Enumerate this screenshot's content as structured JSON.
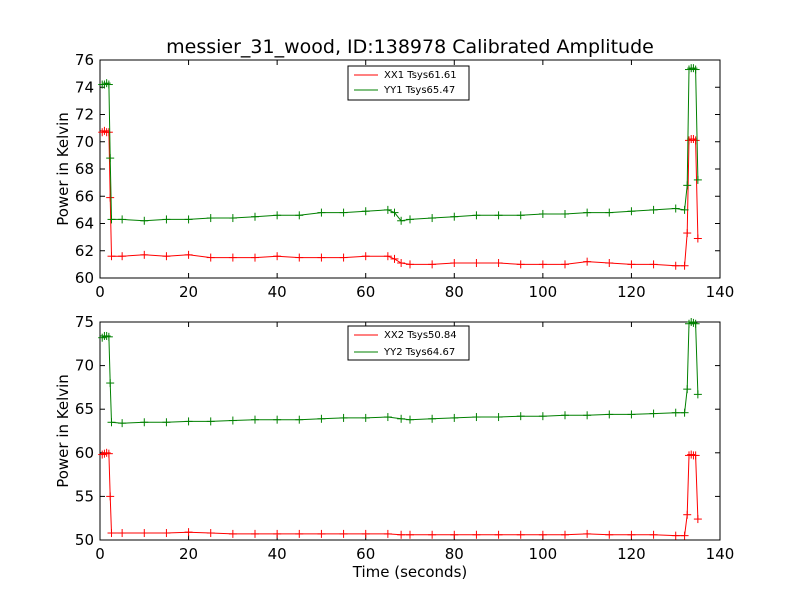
{
  "title": "messier_31_wood, ID:138978 Calibrated Amplitude",
  "colors": {
    "red": "#ff0000",
    "green": "#008000",
    "axes": "#000000",
    "background": "#ffffff"
  },
  "chart_data": [
    {
      "type": "line",
      "title": "messier_31_wood, ID:138978 Calibrated Amplitude",
      "ylabel": "Power in Kelvin",
      "xlabel": "",
      "xlim": [
        0,
        140
      ],
      "ylim": [
        60,
        76
      ],
      "xticks": [
        "0",
        "20",
        "40",
        "60",
        "80",
        "100",
        "120",
        "140"
      ],
      "yticks": [
        "60",
        "62",
        "64",
        "66",
        "68",
        "70",
        "72",
        "74",
        "76"
      ],
      "grid": false,
      "legend_position": "top-center",
      "series": [
        {
          "name": "XX1 Tsys61.61",
          "color": "#ff0000",
          "marker": "+",
          "x": [
            0.5,
            1.0,
            1.5,
            2.0,
            2.3,
            2.6,
            5,
            10,
            15,
            20,
            25,
            30,
            35,
            40,
            45,
            50,
            55,
            60,
            65,
            66.5,
            68,
            70,
            75,
            80,
            85,
            90,
            95,
            100,
            105,
            110,
            115,
            120,
            125,
            130,
            132,
            132.6,
            133,
            133.5,
            134,
            134.5,
            135
          ],
          "y": [
            70.7,
            70.8,
            70.7,
            70.7,
            65.9,
            61.6,
            61.6,
            61.7,
            61.6,
            61.7,
            61.5,
            61.5,
            61.5,
            61.6,
            61.5,
            61.5,
            61.5,
            61.6,
            61.6,
            61.4,
            61.1,
            61.0,
            61.0,
            61.1,
            61.1,
            61.1,
            61.0,
            61.0,
            61.0,
            61.2,
            61.1,
            61.0,
            61.0,
            60.9,
            60.9,
            63.3,
            70.1,
            70.2,
            70.2,
            70.1,
            62.9
          ]
        },
        {
          "name": "YY1 Tsys65.47",
          "color": "#008000",
          "marker": "+",
          "x": [
            0.5,
            1.0,
            1.5,
            2.0,
            2.3,
            2.6,
            5,
            10,
            15,
            20,
            25,
            30,
            35,
            40,
            45,
            50,
            55,
            60,
            65,
            66.5,
            68,
            70,
            75,
            80,
            85,
            90,
            95,
            100,
            105,
            110,
            115,
            120,
            125,
            130,
            132,
            132.6,
            133,
            133.5,
            134,
            134.5,
            135
          ],
          "y": [
            74.2,
            74.2,
            74.3,
            74.2,
            68.8,
            64.3,
            64.3,
            64.2,
            64.3,
            64.3,
            64.4,
            64.4,
            64.5,
            64.6,
            64.6,
            64.8,
            64.8,
            64.9,
            65.0,
            64.8,
            64.2,
            64.3,
            64.4,
            64.5,
            64.6,
            64.6,
            64.6,
            64.7,
            64.7,
            64.8,
            64.8,
            64.9,
            65.0,
            65.1,
            65.0,
            66.8,
            75.3,
            75.4,
            75.4,
            75.3,
            67.2
          ]
        }
      ]
    },
    {
      "type": "line",
      "title": "",
      "ylabel": "Power in Kelvin",
      "xlabel": "Time (seconds)",
      "xlim": [
        0,
        140
      ],
      "ylim": [
        50,
        75
      ],
      "xticks": [
        "0",
        "20",
        "40",
        "60",
        "80",
        "100",
        "120",
        "140"
      ],
      "yticks": [
        "50",
        "55",
        "60",
        "65",
        "70",
        "75"
      ],
      "grid": false,
      "legend_position": "top-center",
      "series": [
        {
          "name": "XX2 Tsys50.84",
          "color": "#ff0000",
          "marker": "+",
          "x": [
            0.5,
            1.0,
            1.5,
            2.0,
            2.3,
            2.6,
            5,
            10,
            15,
            20,
            25,
            30,
            35,
            40,
            45,
            50,
            55,
            60,
            65,
            68,
            70,
            75,
            80,
            85,
            90,
            95,
            100,
            105,
            110,
            115,
            120,
            125,
            130,
            132,
            132.6,
            133,
            133.5,
            134,
            134.5,
            135
          ],
          "y": [
            59.8,
            59.9,
            60.0,
            59.9,
            55.0,
            50.8,
            50.8,
            50.8,
            50.8,
            50.9,
            50.8,
            50.7,
            50.7,
            50.7,
            50.7,
            50.7,
            50.7,
            50.7,
            50.7,
            50.6,
            50.6,
            50.6,
            50.6,
            50.6,
            50.6,
            50.6,
            50.6,
            50.6,
            50.7,
            50.6,
            50.6,
            50.6,
            50.5,
            50.5,
            52.9,
            59.7,
            59.8,
            59.7,
            59.7,
            52.4
          ]
        },
        {
          "name": "YY2 Tsys64.67",
          "color": "#008000",
          "marker": "+",
          "x": [
            0.5,
            1.0,
            1.5,
            2.0,
            2.3,
            2.6,
            5,
            10,
            15,
            20,
            25,
            30,
            35,
            40,
            45,
            50,
            55,
            60,
            65,
            68,
            70,
            75,
            80,
            85,
            90,
            95,
            100,
            105,
            110,
            115,
            120,
            125,
            130,
            132,
            132.6,
            133,
            133.5,
            134,
            134.5,
            135
          ],
          "y": [
            73.2,
            73.4,
            73.4,
            73.3,
            68.0,
            63.5,
            63.4,
            63.5,
            63.5,
            63.6,
            63.6,
            63.7,
            63.8,
            63.8,
            63.8,
            63.9,
            64.0,
            64.0,
            64.1,
            63.9,
            63.8,
            63.9,
            64.0,
            64.1,
            64.1,
            64.2,
            64.2,
            64.3,
            64.3,
            64.4,
            64.4,
            64.5,
            64.6,
            64.6,
            67.3,
            74.8,
            75.0,
            74.9,
            74.8,
            66.7
          ]
        }
      ]
    }
  ]
}
